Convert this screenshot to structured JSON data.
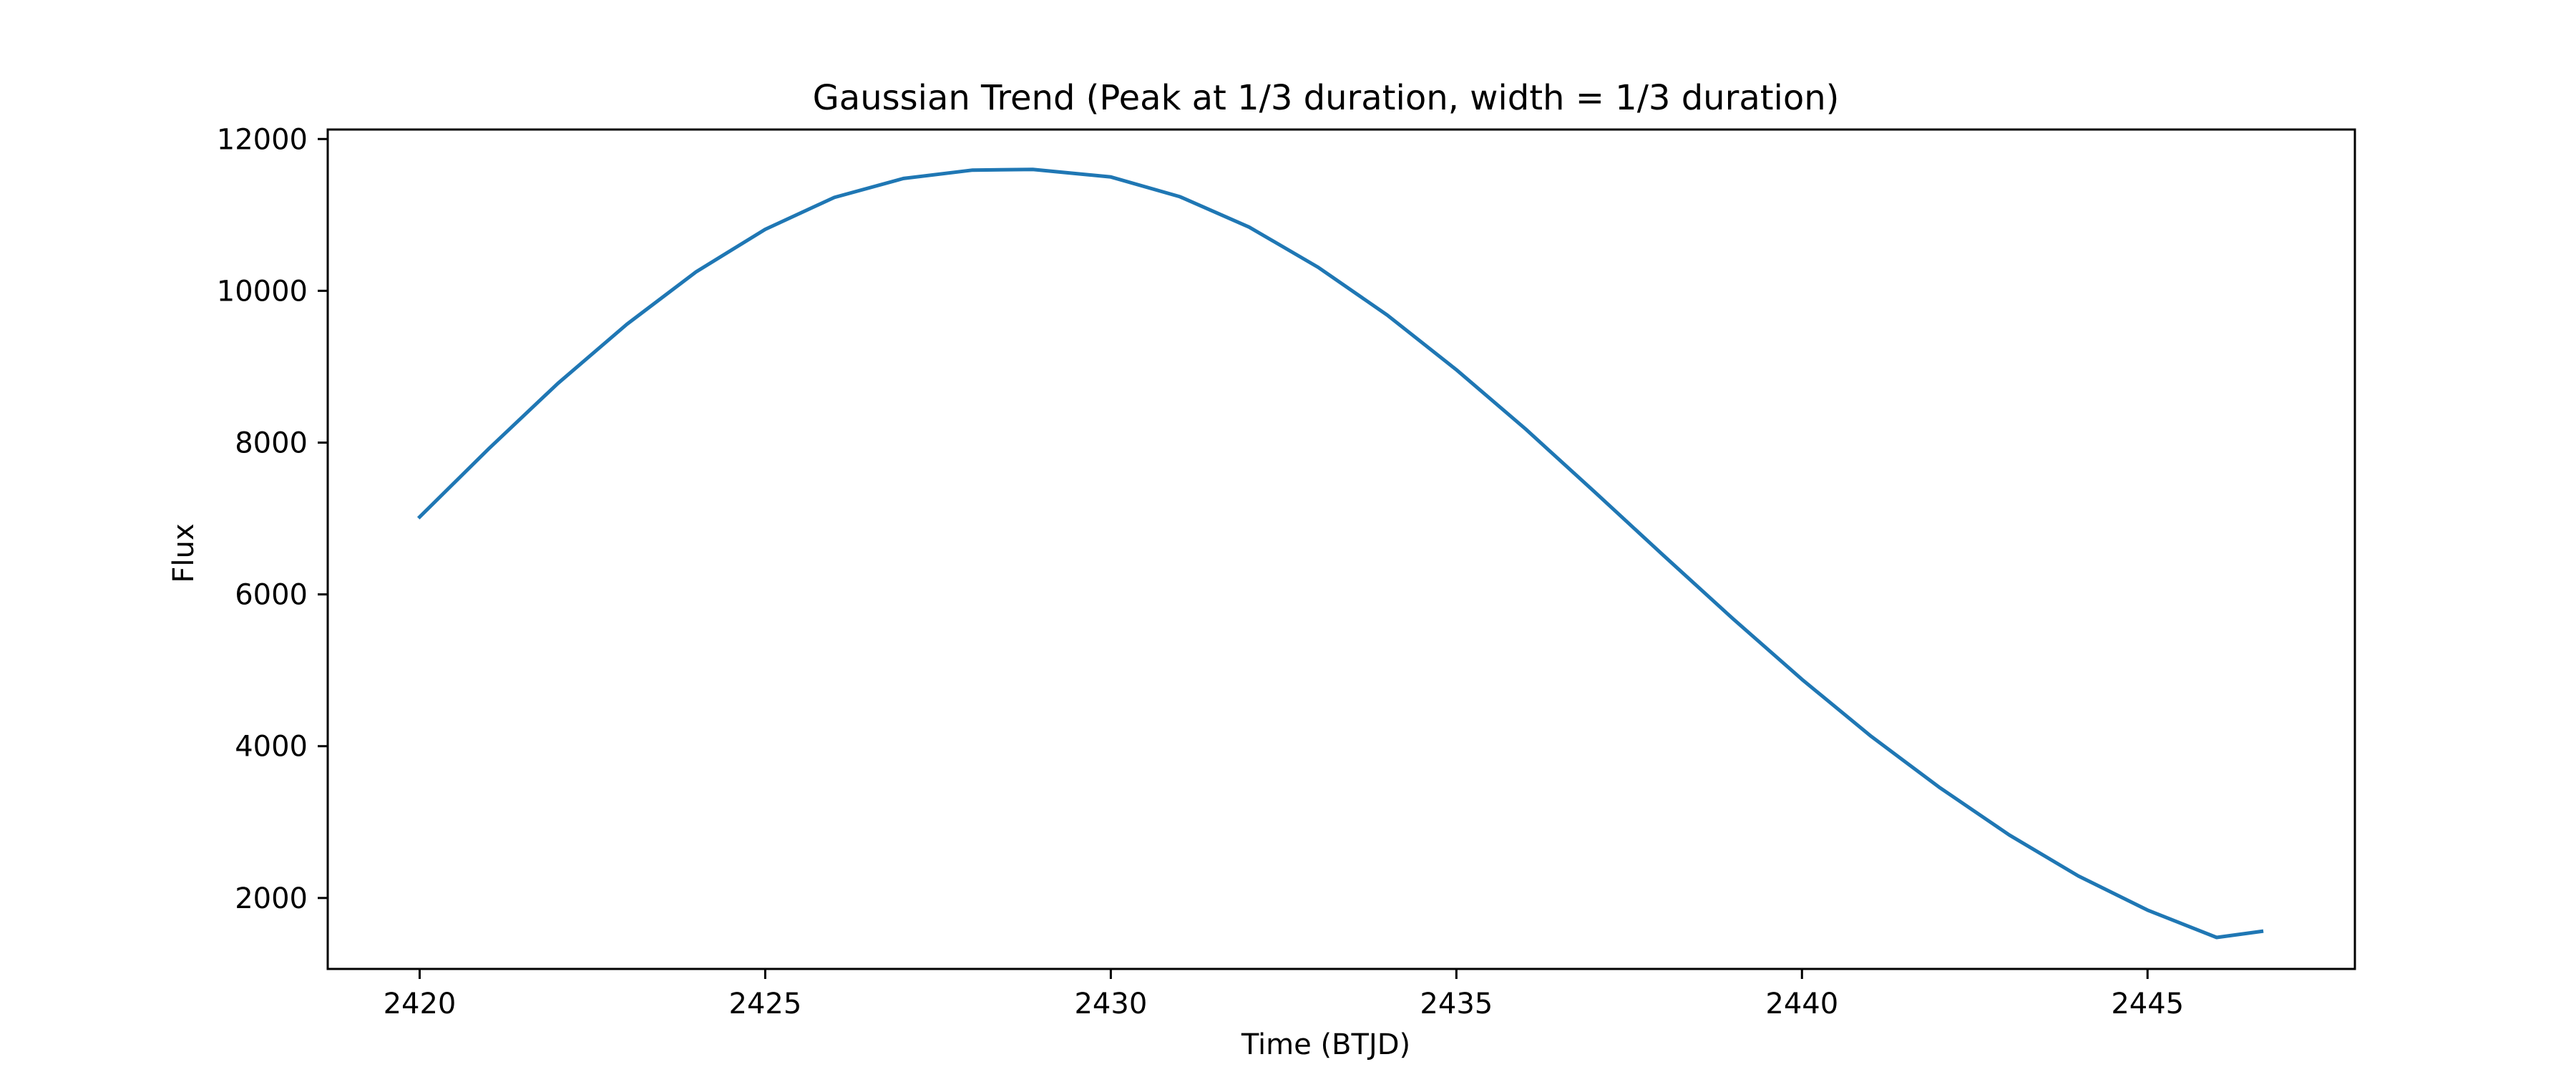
{
  "chart_data": {
    "type": "line",
    "title": "Gaussian Trend (Peak at 1/3 duration, width = 1/3 duration)",
    "xlabel": "Time (BTJD)",
    "ylabel": "Flux",
    "xlim": [
      2418.67,
      2448.0
    ],
    "ylim": [
      1065,
      12125
    ],
    "xticks": [
      2420,
      2425,
      2430,
      2435,
      2440,
      2445
    ],
    "yticks": [
      2000,
      4000,
      6000,
      8000,
      10000,
      12000
    ],
    "grid": false,
    "series": [
      {
        "color": "#1f77b4",
        "x": [
          2420.0,
          2421.0,
          2422.0,
          2423.0,
          2424.0,
          2425.0,
          2426.0,
          2427.0,
          2428.0,
          2428.87,
          2430.0,
          2431.0,
          2432.0,
          2433.0,
          2434.0,
          2435.0,
          2436.0,
          2437.0,
          2438.0,
          2439.0,
          2440.0,
          2441.0,
          2442.0,
          2443.0,
          2444.0,
          2445.0,
          2446.0,
          2446.65
        ],
        "y": [
          7020,
          7920,
          8780,
          9560,
          10250,
          10810,
          11230,
          11480,
          11590,
          11600,
          11500,
          11240,
          10840,
          10310,
          9680,
          8960,
          8180,
          7350,
          6510,
          5680,
          4880,
          4130,
          3450,
          2830,
          2290,
          1840,
          1480,
          1560
        ]
      }
    ]
  }
}
